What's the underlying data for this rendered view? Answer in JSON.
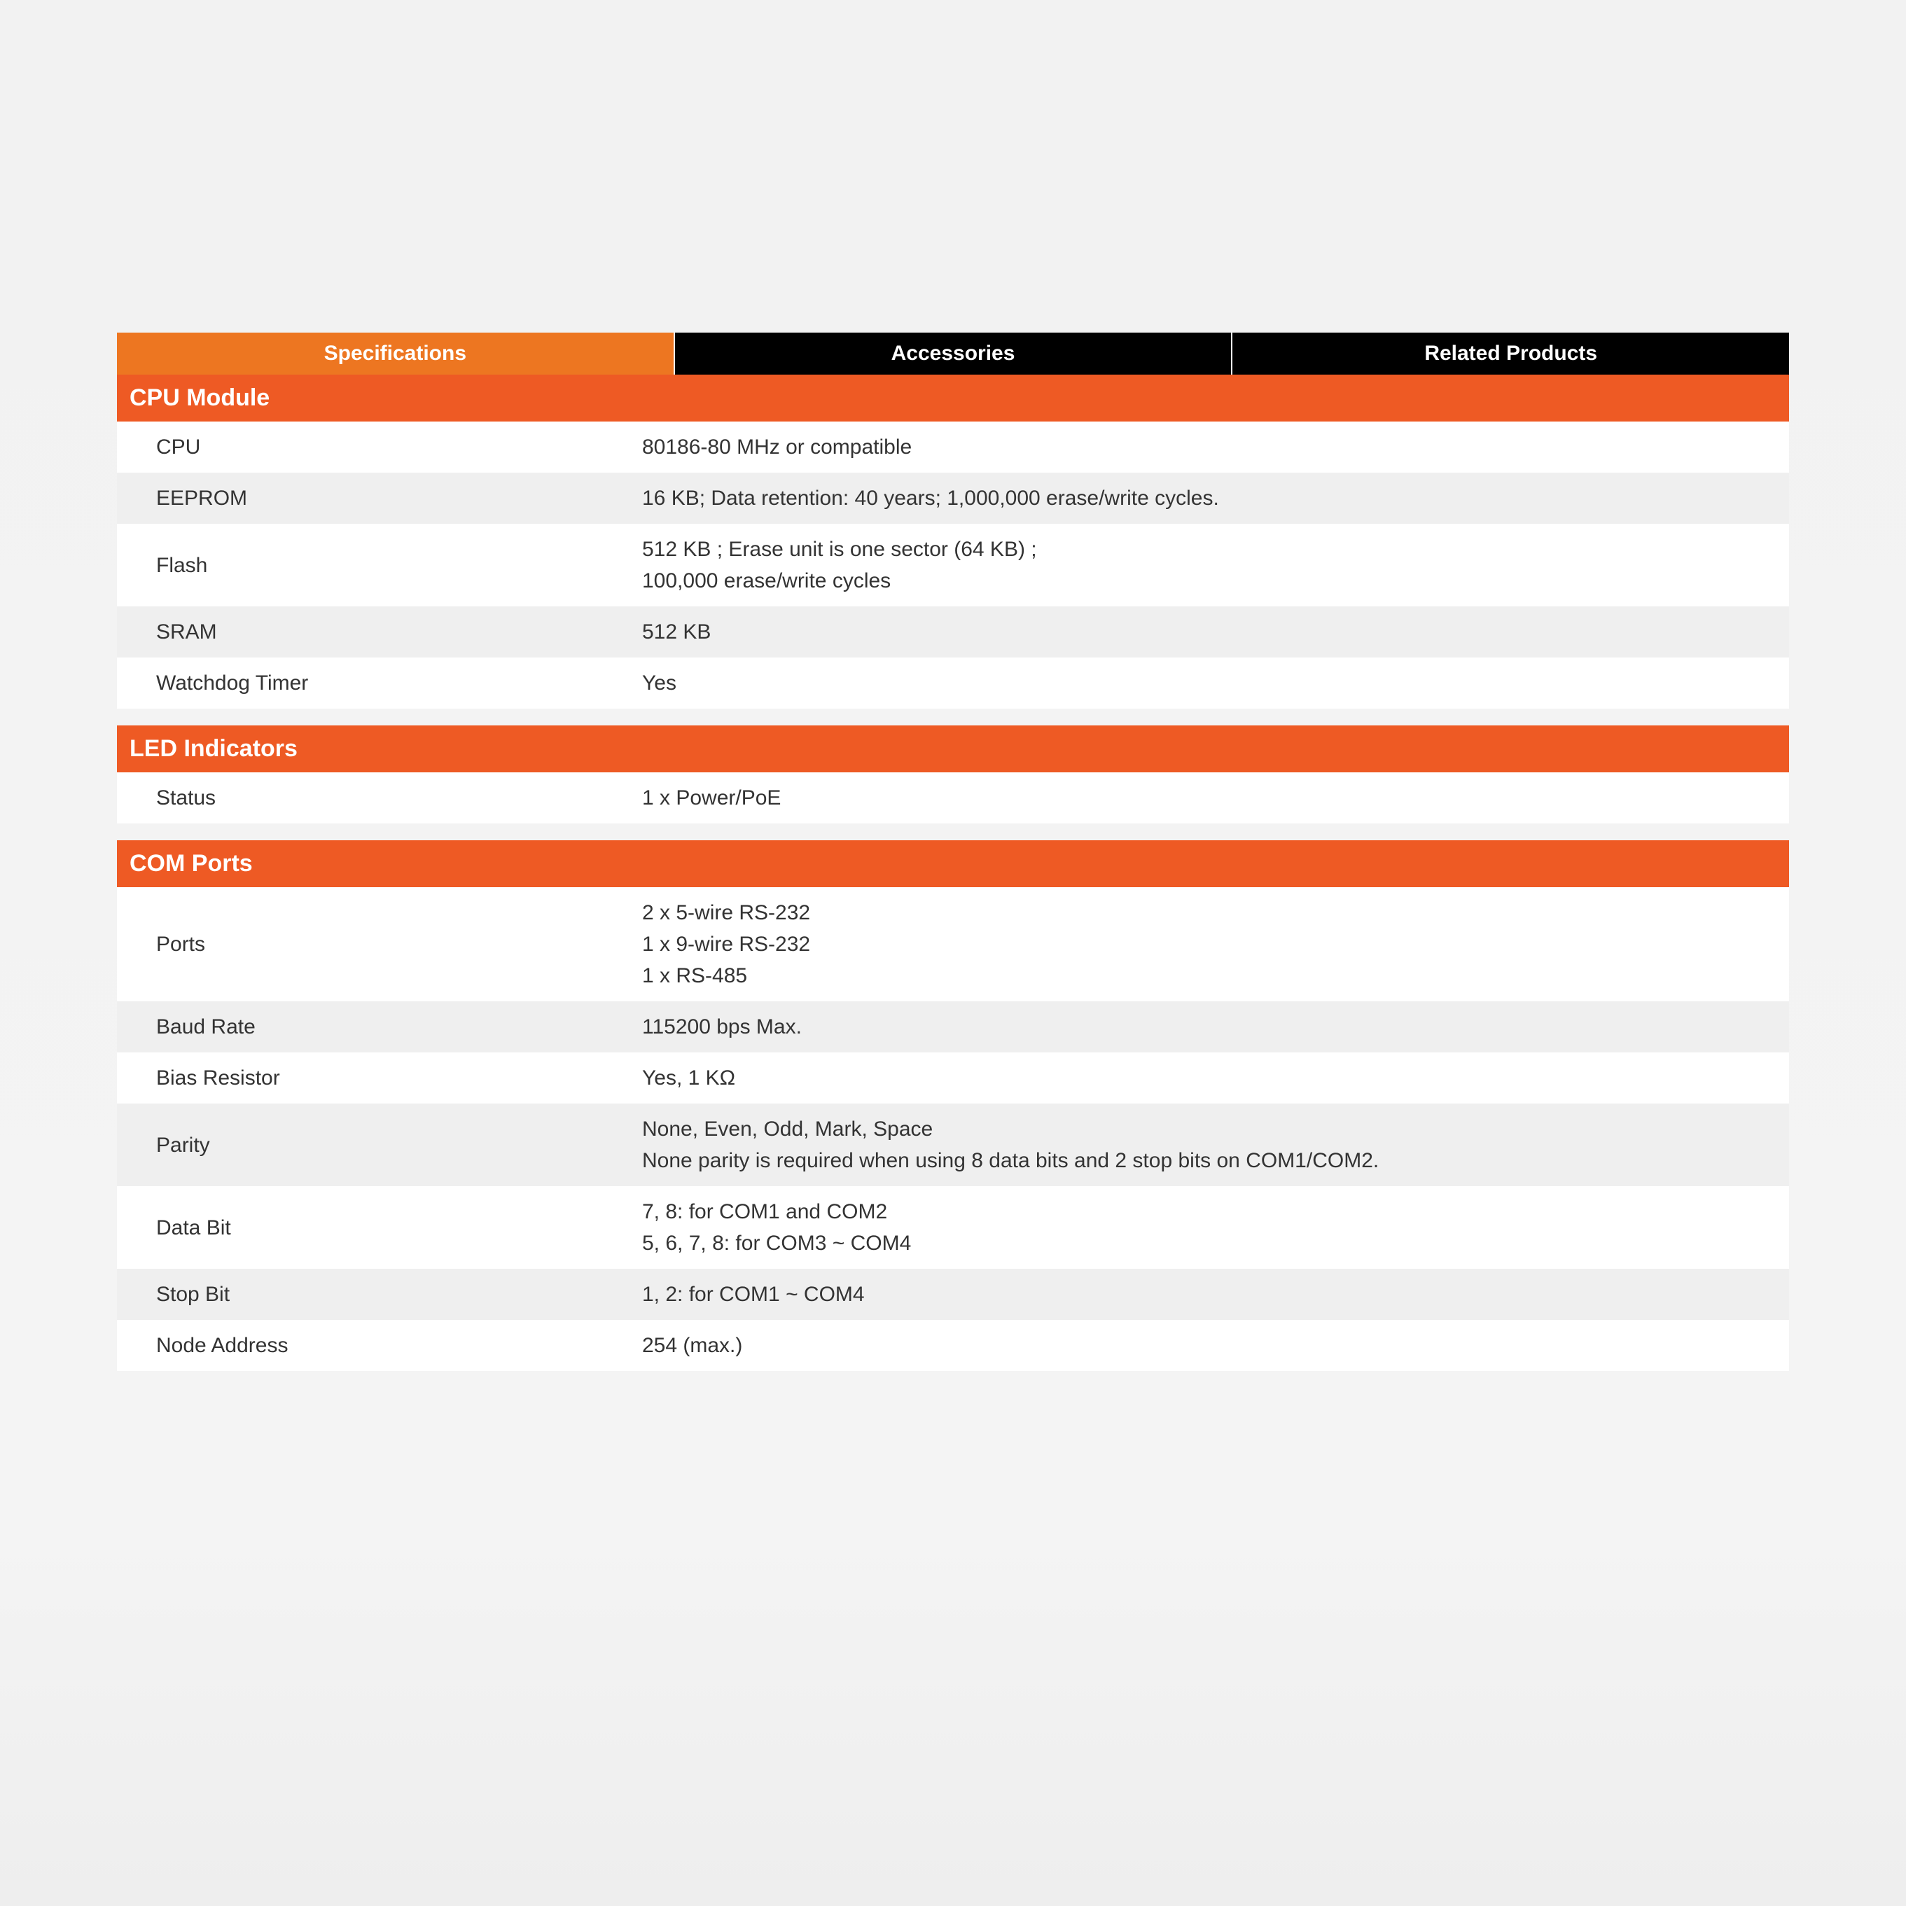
{
  "colors": {
    "tab_active_bg": "#ed7621",
    "tab_inactive_bg": "#000000",
    "tab_text": "#ffffff",
    "section_header_bg": "#ee5a24",
    "section_header_text": "#ffffff",
    "row_white_bg": "#ffffff",
    "row_gray_bg": "#efefef",
    "text_color": "#333333",
    "page_bg": "#f2f2f2"
  },
  "typography": {
    "tab_fontsize": 30,
    "tab_fontweight": 700,
    "section_header_fontsize": 34,
    "section_header_fontweight": 600,
    "row_fontsize": 30
  },
  "tabs": [
    {
      "label": "Specifications",
      "active": true
    },
    {
      "label": "Accessories",
      "active": false
    },
    {
      "label": "Related Products",
      "active": false
    }
  ],
  "sections": [
    {
      "title": "CPU Module",
      "rows": [
        {
          "label": "CPU",
          "value": "80186-80 MHz or compatible"
        },
        {
          "label": "EEPROM",
          "value": "16 KB; Data retention: 40 years; 1,000,000 erase/write cycles."
        },
        {
          "label": "Flash",
          "value": "512 KB ; Erase unit is one sector (64 KB) ;\n100,000 erase/write cycles"
        },
        {
          "label": "SRAM",
          "value": "512 KB"
        },
        {
          "label": "Watchdog Timer",
          "value": "Yes"
        }
      ]
    },
    {
      "title": "LED Indicators",
      "rows": [
        {
          "label": "Status",
          "value": "1 x Power/PoE"
        }
      ]
    },
    {
      "title": "COM Ports",
      "rows": [
        {
          "label": "Ports",
          "value": "2 x 5-wire RS-232\n1 x 9-wire RS-232\n1 x RS-485"
        },
        {
          "label": "Baud Rate",
          "value": "115200 bps Max."
        },
        {
          "label": "Bias Resistor",
          "value": "Yes, 1 KΩ"
        },
        {
          "label": "Parity",
          "value": "None, Even, Odd, Mark, Space\nNone parity is required when using 8 data bits and 2 stop bits on COM1/COM2."
        },
        {
          "label": "Data Bit",
          "value": "7, 8: for COM1 and COM2\n5, 6, 7, 8: for COM3 ~ COM4"
        },
        {
          "label": "Stop Bit",
          "value": "1, 2: for COM1 ~ COM4"
        },
        {
          "label": "Node Address",
          "value": "254 (max.)"
        }
      ]
    }
  ]
}
